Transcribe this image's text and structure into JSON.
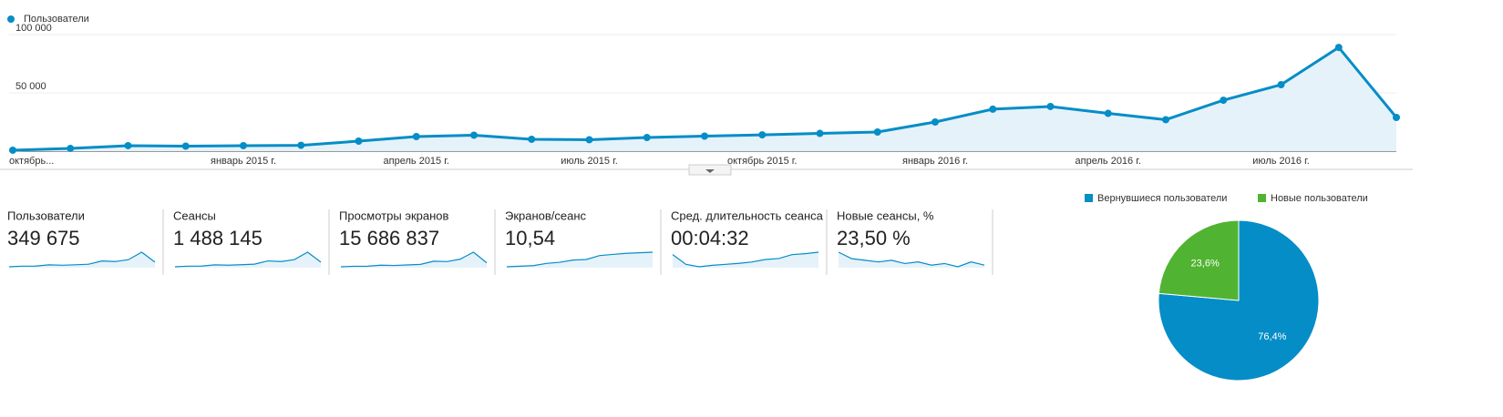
{
  "chart_data": [
    {
      "type": "line",
      "legend": "top-left",
      "categories": [
        "октябрь...",
        null,
        null,
        null,
        "январь 2015 г.",
        null,
        null,
        "апрель 2015 г.",
        null,
        null,
        "июль 2015 г.",
        null,
        null,
        "октябрь 2015 г.",
        null,
        null,
        "январь 2016 г.",
        null,
        null,
        "апрель 2016 г.",
        null,
        null,
        "июль 2016 г.",
        null,
        null
      ],
      "series": [
        {
          "name": "Пользователи",
          "color": "#058dc7",
          "values": [
            800,
            2300,
            4700,
            4300,
            4700,
            5000,
            8600,
            12500,
            13700,
            10200,
            9800,
            11700,
            12900,
            14000,
            15200,
            16400,
            25000,
            36000,
            38300,
            32400,
            27000,
            43700,
            57000,
            89000,
            28900
          ]
        }
      ],
      "ylim": [
        0,
        100000
      ],
      "yticks": [
        {
          "value": 50000,
          "label": "50 000"
        },
        {
          "value": 100000,
          "label": "100 000"
        }
      ],
      "grid": true
    },
    {
      "type": "pie",
      "legend": "top-right",
      "categories": [
        "Вернувшиеся пользователи",
        "Новые пользователи"
      ],
      "values": [
        76.4,
        23.6
      ],
      "value_labels": [
        "76,4%",
        "23,6%"
      ],
      "colors": [
        "#058dc7",
        "#50b432"
      ]
    }
  ],
  "metrics": [
    {
      "label": "Пользователи",
      "value": "349 675",
      "sparkline": [
        800,
        4700,
        5000,
        12500,
        10200,
        12900,
        16400,
        36000,
        32400,
        43700,
        89000,
        28900
      ]
    },
    {
      "label": "Сеансы",
      "value": "1 488 145",
      "sparkline": [
        3000,
        18000,
        20000,
        50000,
        41000,
        52000,
        66000,
        145000,
        130000,
        175000,
        356000,
        116000
      ]
    },
    {
      "label": "Просмотры экранов",
      "value": "15 686 837",
      "sparkline": [
        30000,
        150000,
        170000,
        420000,
        350000,
        480000,
        620000,
        1400000,
        1300000,
        1900000,
        3600000,
        1000000
      ]
    },
    {
      "label": "Экранов/сеанс",
      "value": "10,54",
      "sparkline": [
        9.0,
        9.1,
        9.2,
        9.6,
        9.8,
        10.2,
        10.3,
        11.0,
        11.2,
        11.4,
        11.5,
        11.6
      ]
    },
    {
      "label": "Сред. длительность сеанса",
      "value": "00:04:32",
      "sparkline": [
        290,
        270,
        265,
        268,
        270,
        272,
        275,
        280,
        282,
        290,
        292,
        295
      ]
    },
    {
      "label": "Новые сеансы, %",
      "value": "23,50 %",
      "sparkline": [
        30,
        26,
        25,
        24,
        25,
        23,
        24,
        22,
        23,
        21,
        24,
        22
      ]
    }
  ]
}
